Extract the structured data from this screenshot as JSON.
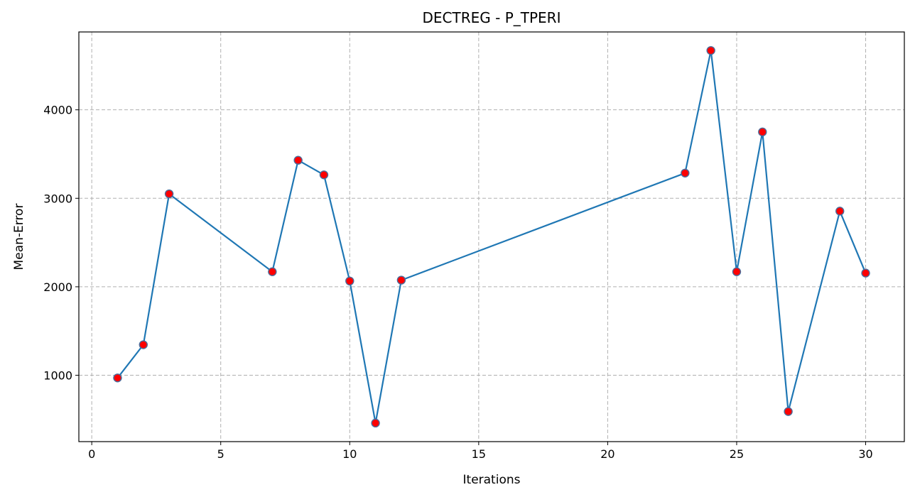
{
  "chart_data": {
    "type": "line",
    "title": "DECTREG - P_TPERI",
    "xlabel": "Iterations",
    "ylabel": "Mean-Error",
    "xlim": [
      -0.5,
      31.5
    ],
    "ylim": [
      250,
      4880
    ],
    "xticks": [
      0,
      5,
      10,
      15,
      20,
      25,
      30
    ],
    "yticks": [
      1000,
      2000,
      3000,
      4000
    ],
    "grid": true,
    "line_color": "#1f77b4",
    "marker_face_color": "#ff0000",
    "marker_edge_color": "#4a6d9c",
    "series": [
      {
        "x": [
          1,
          2,
          3,
          7,
          8,
          9,
          10,
          11,
          12,
          23,
          24,
          25,
          26,
          27,
          29,
          30
        ],
        "y": [
          970,
          1345,
          3050,
          2170,
          3430,
          3265,
          2065,
          460,
          2075,
          3285,
          4670,
          2170,
          3750,
          590,
          2855,
          2155
        ]
      }
    ]
  }
}
